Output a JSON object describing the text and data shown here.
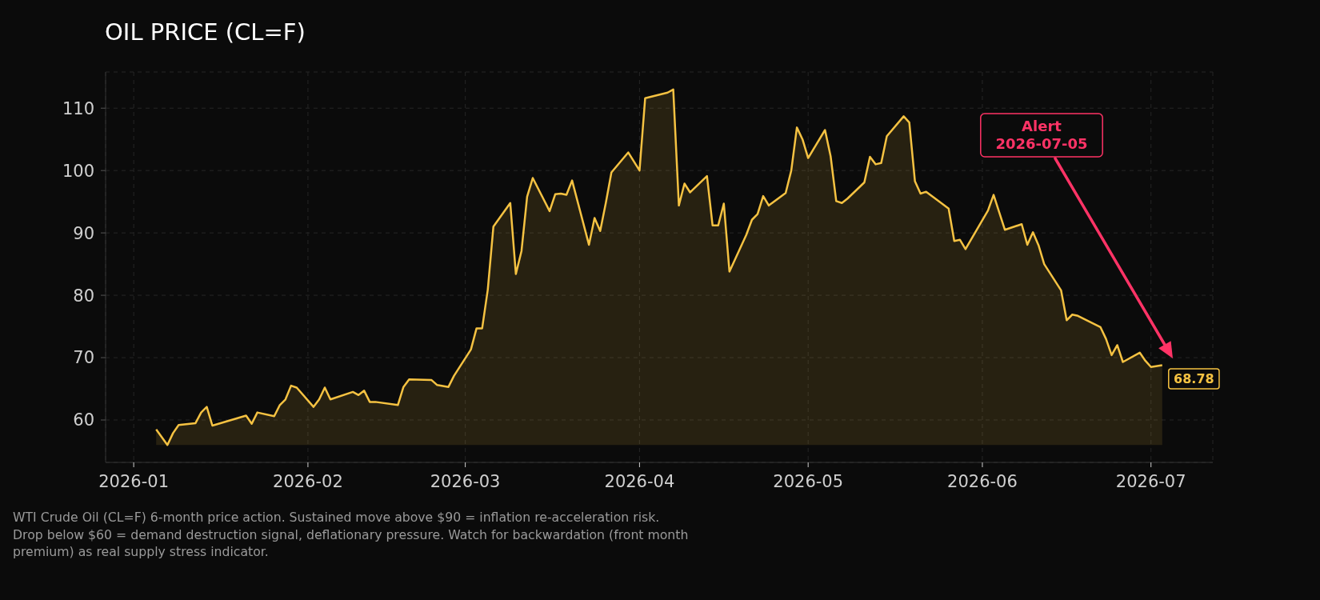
{
  "chart_data": {
    "type": "area",
    "title": "OIL PRICE (CL=F)",
    "x": [
      "2026-01-05",
      "2026-01-07",
      "2026-01-08",
      "2026-01-09",
      "2026-01-12",
      "2026-01-13",
      "2026-01-14",
      "2026-01-15",
      "2026-01-21",
      "2026-01-22",
      "2026-01-23",
      "2026-01-26",
      "2026-01-27",
      "2026-01-28",
      "2026-01-29",
      "2026-01-30",
      "2026-02-02",
      "2026-02-03",
      "2026-02-04",
      "2026-02-05",
      "2026-02-09",
      "2026-02-10",
      "2026-02-11",
      "2026-02-12",
      "2026-02-13",
      "2026-02-17",
      "2026-02-18",
      "2026-02-19",
      "2026-02-23",
      "2026-02-24",
      "2026-02-26",
      "2026-02-27",
      "2026-03-02",
      "2026-03-03",
      "2026-03-04",
      "2026-03-05",
      "2026-03-06",
      "2026-03-09",
      "2026-03-10",
      "2026-03-11",
      "2026-03-12",
      "2026-03-13",
      "2026-03-16",
      "2026-03-17",
      "2026-03-18",
      "2026-03-19",
      "2026-03-20",
      "2026-03-23",
      "2026-03-24",
      "2026-03-25",
      "2026-03-26",
      "2026-03-27",
      "2026-03-30",
      "2026-04-01",
      "2026-04-02",
      "2026-04-06",
      "2026-04-07",
      "2026-04-08",
      "2026-04-09",
      "2026-04-10",
      "2026-04-13",
      "2026-04-14",
      "2026-04-15",
      "2026-04-16",
      "2026-04-17",
      "2026-04-20",
      "2026-04-21",
      "2026-04-22",
      "2026-04-23",
      "2026-04-24",
      "2026-04-27",
      "2026-04-28",
      "2026-04-29",
      "2026-04-30",
      "2026-05-01",
      "2026-05-04",
      "2026-05-05",
      "2026-05-06",
      "2026-05-07",
      "2026-05-08",
      "2026-05-11",
      "2026-05-12",
      "2026-05-13",
      "2026-05-14",
      "2026-05-15",
      "2026-05-18",
      "2026-05-19",
      "2026-05-20",
      "2026-05-21",
      "2026-05-22",
      "2026-05-26",
      "2026-05-27",
      "2026-05-28",
      "2026-05-29",
      "2026-06-02",
      "2026-06-03",
      "2026-06-04",
      "2026-06-05",
      "2026-06-08",
      "2026-06-09",
      "2026-06-10",
      "2026-06-11",
      "2026-06-12",
      "2026-06-15",
      "2026-06-16",
      "2026-06-17",
      "2026-06-18",
      "2026-06-22",
      "2026-06-23",
      "2026-06-24",
      "2026-06-25",
      "2026-06-26",
      "2026-06-29",
      "2026-06-30",
      "2026-07-01",
      "2026-07-03"
    ],
    "values": [
      58.5,
      56.0,
      57.9,
      59.2,
      59.5,
      61.2,
      62.1,
      59.1,
      60.7,
      59.4,
      61.2,
      60.6,
      62.4,
      63.3,
      65.5,
      65.2,
      62.1,
      63.3,
      65.2,
      63.3,
      64.5,
      64.0,
      64.7,
      62.9,
      62.9,
      62.4,
      65.3,
      66.5,
      66.4,
      65.6,
      65.3,
      67.1,
      71.3,
      74.7,
      74.7,
      80.9,
      91.0,
      94.8,
      83.4,
      87.1,
      95.8,
      98.8,
      93.5,
      96.2,
      96.3,
      96.1,
      98.4,
      88.1,
      92.4,
      90.3,
      94.8,
      99.7,
      102.9,
      100.0,
      111.6,
      112.5,
      113.0,
      94.4,
      97.9,
      96.5,
      99.1,
      91.2,
      91.2,
      94.7,
      83.8,
      89.7,
      92.1,
      93.0,
      95.9,
      94.4,
      96.4,
      100.0,
      106.9,
      105.0,
      102.0,
      106.5,
      102.3,
      95.1,
      94.8,
      95.5,
      98.1,
      102.2,
      101.0,
      101.2,
      105.5,
      108.7,
      107.7,
      98.3,
      96.3,
      96.6,
      93.9,
      88.7,
      88.9,
      87.4,
      93.6,
      96.1,
      93.3,
      90.5,
      91.4,
      88.1,
      90.1,
      88.0,
      85.0,
      80.8,
      76.0,
      76.9,
      76.7,
      74.9,
      73.0,
      70.4,
      72.0,
      69.3,
      70.8,
      69.5,
      68.5,
      68.78
    ],
    "color": "#f5c242",
    "value_labels": [
      null,
      null,
      null,
      null,
      null,
      null,
      null,
      null,
      null,
      null,
      null,
      null,
      null,
      null,
      null,
      null,
      null,
      null,
      null,
      null,
      null,
      null,
      null,
      null,
      null,
      null,
      null,
      null,
      null,
      null,
      null,
      null,
      null,
      null,
      null,
      null,
      null,
      null,
      null,
      null,
      null,
      null,
      null,
      null,
      null,
      null,
      null,
      null,
      null,
      null,
      null,
      null,
      null,
      null,
      null,
      null,
      null,
      null,
      null,
      null,
      null,
      null,
      null,
      null,
      null,
      null,
      null,
      null,
      null,
      null,
      null,
      null,
      null,
      null,
      null,
      null,
      null,
      null,
      null,
      null,
      null,
      null,
      null,
      null,
      null,
      null,
      null,
      null,
      null,
      null,
      null,
      null,
      null,
      null,
      null,
      null,
      null,
      null,
      null,
      null,
      null,
      null,
      null,
      null,
      null,
      null,
      null,
      null,
      null,
      null,
      null,
      null,
      null,
      null,
      null,
      "68.78"
    ],
    "xlim": [
      "2025-12-27",
      "2026-07-12"
    ],
    "xticks": [
      "2026-01",
      "2026-02",
      "2026-03",
      "2026-04",
      "2026-05",
      "2026-06",
      "2026-07"
    ],
    "ylim": [
      53.2,
      115.8
    ],
    "yticks": [
      60,
      70,
      80,
      90,
      100,
      110
    ],
    "grid": true,
    "annotations": [
      "Alert\n2026-07-05",
      "WTI Crude Oil (CL=F) 6-month price action. Sustained move above $90 = inflation re-acceleration risk. Drop below $60 = demand destruction signal, deflationary pressure. Watch for backwardation (front month premium) as real supply stress indicator."
    ]
  }
}
